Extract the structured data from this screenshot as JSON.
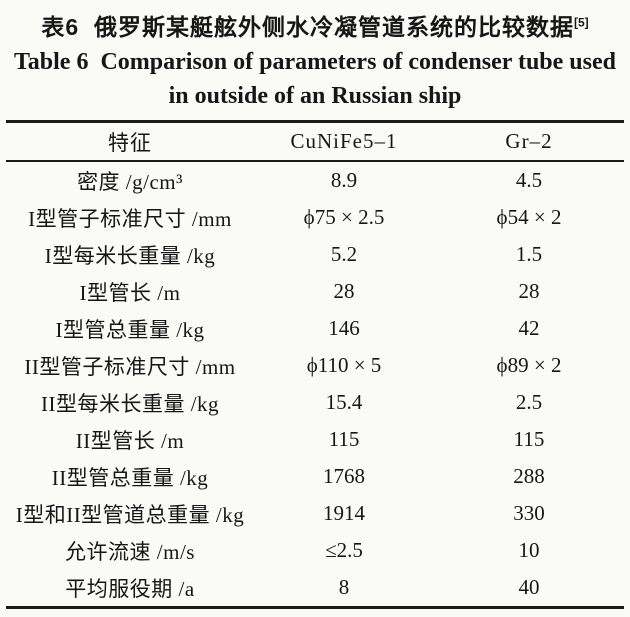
{
  "page": {
    "background": "#fafaf7",
    "text_color": "#161616",
    "rule_color": "#1a1a1a"
  },
  "caption": {
    "zh": "表6  俄罗斯某艇舷外侧水冷凝管道系统的比较数据",
    "zh_ref_sup": "[5]",
    "en_line1": "Table 6  Comparison of parameters of condenser tube used",
    "en_line2": "in outside of an Russian ship"
  },
  "table": {
    "headers": [
      "特征",
      "CuNiFe5–1",
      "Gr–2"
    ],
    "rows": [
      [
        "密度 /g/cm³",
        "8.9",
        "4.5"
      ],
      [
        "I型管子标准尺寸 /mm",
        "ϕ75 × 2.5",
        "ϕ54 × 2"
      ],
      [
        "I型每米长重量 /kg",
        "5.2",
        "1.5"
      ],
      [
        "I型管长 /m",
        "28",
        "28"
      ],
      [
        "I型管总重量 /kg",
        "146",
        "42"
      ],
      [
        "II型管子标准尺寸 /mm",
        "ϕ110 × 5",
        "ϕ89 × 2"
      ],
      [
        "II型每米长重量 /kg",
        "15.4",
        "2.5"
      ],
      [
        "II型管长 /m",
        "115",
        "115"
      ],
      [
        "II型管总重量 /kg",
        "1768",
        "288"
      ],
      [
        "I型和II型管道总重量 /kg",
        "1914",
        "330"
      ],
      [
        "允许流速 /m/s",
        "≤2.5",
        "10"
      ],
      [
        "平均服役期 /a",
        "8",
        "40"
      ]
    ]
  }
}
